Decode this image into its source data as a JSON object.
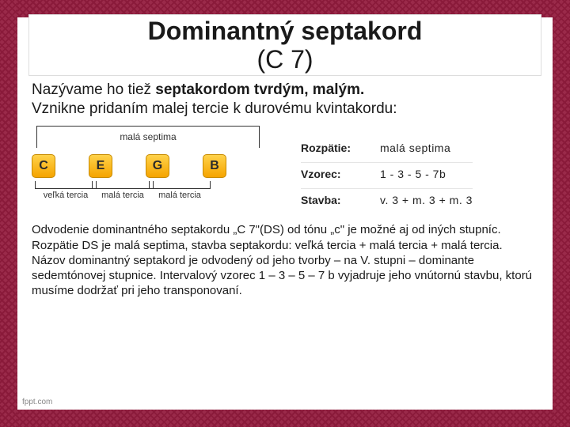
{
  "title": "Dominantný septakord",
  "subtitle": "(C 7)",
  "intro_plain": "Nazývame ho tiež ",
  "intro_bold": "septakordom tvrdým, malým.",
  "intro_line2": "Vznikne pridaním malej tercie k durovému kvintakordu:",
  "chord": {
    "top_label": "malá septima",
    "notes": [
      "C",
      "E",
      "G",
      "B"
    ],
    "intervals": [
      "veľká tercia",
      "malá tercia",
      "malá tercia"
    ],
    "note_bg_top": "#ffd24a",
    "note_bg_bottom": "#f5a400",
    "note_border": "#c78a00"
  },
  "info": {
    "rows": [
      {
        "label": "Rozpätie:",
        "value": "malá septima"
      },
      {
        "label": "Vzorec:",
        "value": "1  -  3  -  5  - 7b"
      },
      {
        "label": "Stavba:",
        "value": "v. 3 + m. 3 + m. 3"
      }
    ]
  },
  "body": "Odvodenie dominantného septakordu „C 7\"(DS) od tónu „c\" je možné aj od iných stupníc. Rozpätie DS je malá septima, stavba septakordu: veľká tercia + malá tercia + malá tercia. Názov dominantný septakord je odvodený od jeho tvorby – na V. stupni – dominante sedemtónovej stupnice. Intervalový vzorec 1 – 3 – 5 – 7 b vyjadruje jeho vnútornú stavbu, ktorú musíme dodržať pri jeho transponovaní.",
  "footer": "fppt.com",
  "colors": {
    "border": "#9a2a4a",
    "border_dark": "#8a1a3a",
    "text": "#1a1a1a",
    "bg": "#ffffff"
  }
}
